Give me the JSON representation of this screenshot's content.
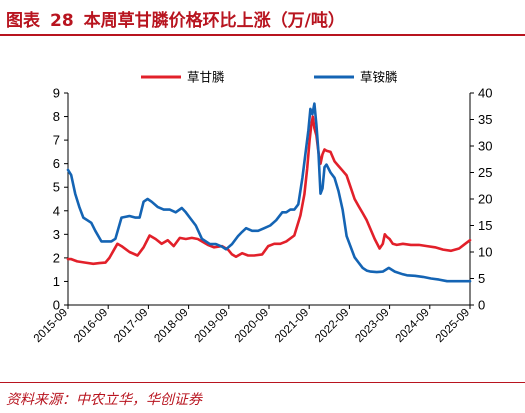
{
  "figure": {
    "label": "图表",
    "number": "28",
    "caption": "本周草甘膦价格环比上涨（万/吨）"
  },
  "source": "资料来源：中农立华，华创证券",
  "colors": {
    "accent": "#b8141f",
    "series_red": "#e2202a",
    "series_blue": "#1464b4"
  },
  "chart_data": {
    "type": "line",
    "title": "",
    "xlabel": "",
    "ylabel": "",
    "x_ticks": [
      "2015-09",
      "2016-09",
      "2017-09",
      "2018-09",
      "2019-09",
      "2020-09",
      "2021-09",
      "2022-09",
      "2023-09",
      "2024-09",
      "2025-09"
    ],
    "y_left": {
      "lim": [
        0,
        9
      ],
      "ticks": [
        "0",
        "1",
        "2",
        "3",
        "4",
        "5",
        "6",
        "7",
        "8",
        "9"
      ]
    },
    "y_right": {
      "lim": [
        0,
        40
      ],
      "ticks": [
        "0",
        "5",
        "10",
        "15",
        "20",
        "25",
        "30",
        "35",
        "40"
      ]
    },
    "legend_position": "top",
    "series": [
      {
        "name": "草甘膦",
        "axis": "left",
        "color": "#e2202a",
        "x": [
          2015.67,
          2015.75,
          2015.9,
          2016.1,
          2016.3,
          2016.45,
          2016.6,
          2016.7,
          2016.8,
          2016.9,
          2017.0,
          2017.2,
          2017.4,
          2017.55,
          2017.7,
          2017.85,
          2018.0,
          2018.15,
          2018.3,
          2018.45,
          2018.6,
          2018.75,
          2018.9,
          2019.0,
          2019.15,
          2019.3,
          2019.5,
          2019.65,
          2019.75,
          2019.85,
          2020.0,
          2020.15,
          2020.3,
          2020.5,
          2020.65,
          2020.8,
          2020.95,
          2021.1,
          2021.3,
          2021.45,
          2021.55,
          2021.62,
          2021.68,
          2021.72,
          2021.76,
          2021.8,
          2021.85,
          2021.9,
          2021.95,
          2022.0,
          2022.05,
          2022.1,
          2022.2,
          2022.3,
          2022.4,
          2022.5,
          2022.6,
          2022.7,
          2022.8,
          2022.9,
          2023.0,
          2023.1,
          2023.2,
          2023.3,
          2023.42,
          2023.5,
          2023.55,
          2023.6,
          2023.67,
          2023.75,
          2023.85,
          2024.0,
          2024.2,
          2024.4,
          2024.6,
          2024.8,
          2025.0,
          2025.2,
          2025.4,
          2025.55,
          2025.67
        ],
        "values": [
          1.95,
          1.95,
          1.85,
          1.8,
          1.75,
          1.78,
          1.8,
          2.0,
          2.3,
          2.6,
          2.5,
          2.25,
          2.1,
          2.45,
          2.95,
          2.8,
          2.6,
          2.75,
          2.5,
          2.85,
          2.8,
          2.85,
          2.8,
          2.7,
          2.55,
          2.45,
          2.5,
          2.35,
          2.15,
          2.05,
          2.2,
          2.1,
          2.1,
          2.15,
          2.5,
          2.6,
          2.6,
          2.7,
          2.95,
          3.8,
          4.7,
          5.8,
          7.0,
          7.6,
          8.0,
          7.5,
          7.2,
          6.5,
          6.0,
          6.4,
          6.6,
          6.55,
          6.5,
          6.1,
          5.9,
          5.7,
          5.5,
          5.0,
          4.5,
          4.2,
          3.9,
          3.6,
          3.2,
          2.8,
          2.4,
          2.6,
          3.0,
          2.9,
          2.8,
          2.6,
          2.55,
          2.6,
          2.55,
          2.55,
          2.5,
          2.45,
          2.35,
          2.3,
          2.4,
          2.6,
          2.75
        ]
      },
      {
        "name": "草铵膦",
        "axis": "right",
        "color": "#1464b4",
        "x": [
          2015.67,
          2015.75,
          2015.85,
          2015.95,
          2016.05,
          2016.15,
          2016.25,
          2016.35,
          2016.5,
          2016.6,
          2016.75,
          2016.85,
          2017.0,
          2017.2,
          2017.35,
          2017.45,
          2017.55,
          2017.65,
          2017.75,
          2017.9,
          2018.05,
          2018.2,
          2018.35,
          2018.5,
          2018.6,
          2018.7,
          2018.85,
          2019.0,
          2019.2,
          2019.35,
          2019.5,
          2019.6,
          2019.75,
          2019.9,
          2020.0,
          2020.1,
          2020.25,
          2020.4,
          2020.55,
          2020.7,
          2020.85,
          2021.0,
          2021.1,
          2021.2,
          2021.3,
          2021.4,
          2021.5,
          2021.6,
          2021.65,
          2021.7,
          2021.75,
          2021.8,
          2021.85,
          2021.9,
          2021.95,
          2022.0,
          2022.05,
          2022.1,
          2022.2,
          2022.3,
          2022.4,
          2022.5,
          2022.6,
          2022.7,
          2022.8,
          2022.9,
          2023.0,
          2023.1,
          2023.2,
          2023.35,
          2023.5,
          2023.65,
          2023.8,
          2024.0,
          2024.1,
          2024.3,
          2024.5,
          2024.7,
          2024.9,
          2025.1,
          2025.3,
          2025.5,
          2025.67
        ],
        "values": [
          25.5,
          24.5,
          21.0,
          18.5,
          16.5,
          16.0,
          15.5,
          14.0,
          12.0,
          12.0,
          12.0,
          12.5,
          16.5,
          16.8,
          16.5,
          16.5,
          19.5,
          20.0,
          19.5,
          18.5,
          18.0,
          18.0,
          17.5,
          18.3,
          17.5,
          16.5,
          15.0,
          12.5,
          11.5,
          11.5,
          11.0,
          10.5,
          11.5,
          13.0,
          13.8,
          14.5,
          14.0,
          14.0,
          14.5,
          15.0,
          16.0,
          17.5,
          17.5,
          18.0,
          18.0,
          19.0,
          24.0,
          30.0,
          33.0,
          37.0,
          36.0,
          38.0,
          34.0,
          29.0,
          21.0,
          22.0,
          26.0,
          26.5,
          25.0,
          24.0,
          21.5,
          18.0,
          13.0,
          11.0,
          9.0,
          8.0,
          7.0,
          6.5,
          6.3,
          6.2,
          6.3,
          7.0,
          6.3,
          5.8,
          5.6,
          5.5,
          5.3,
          5.0,
          4.8,
          4.5,
          4.5,
          4.5,
          4.5
        ]
      }
    ]
  }
}
